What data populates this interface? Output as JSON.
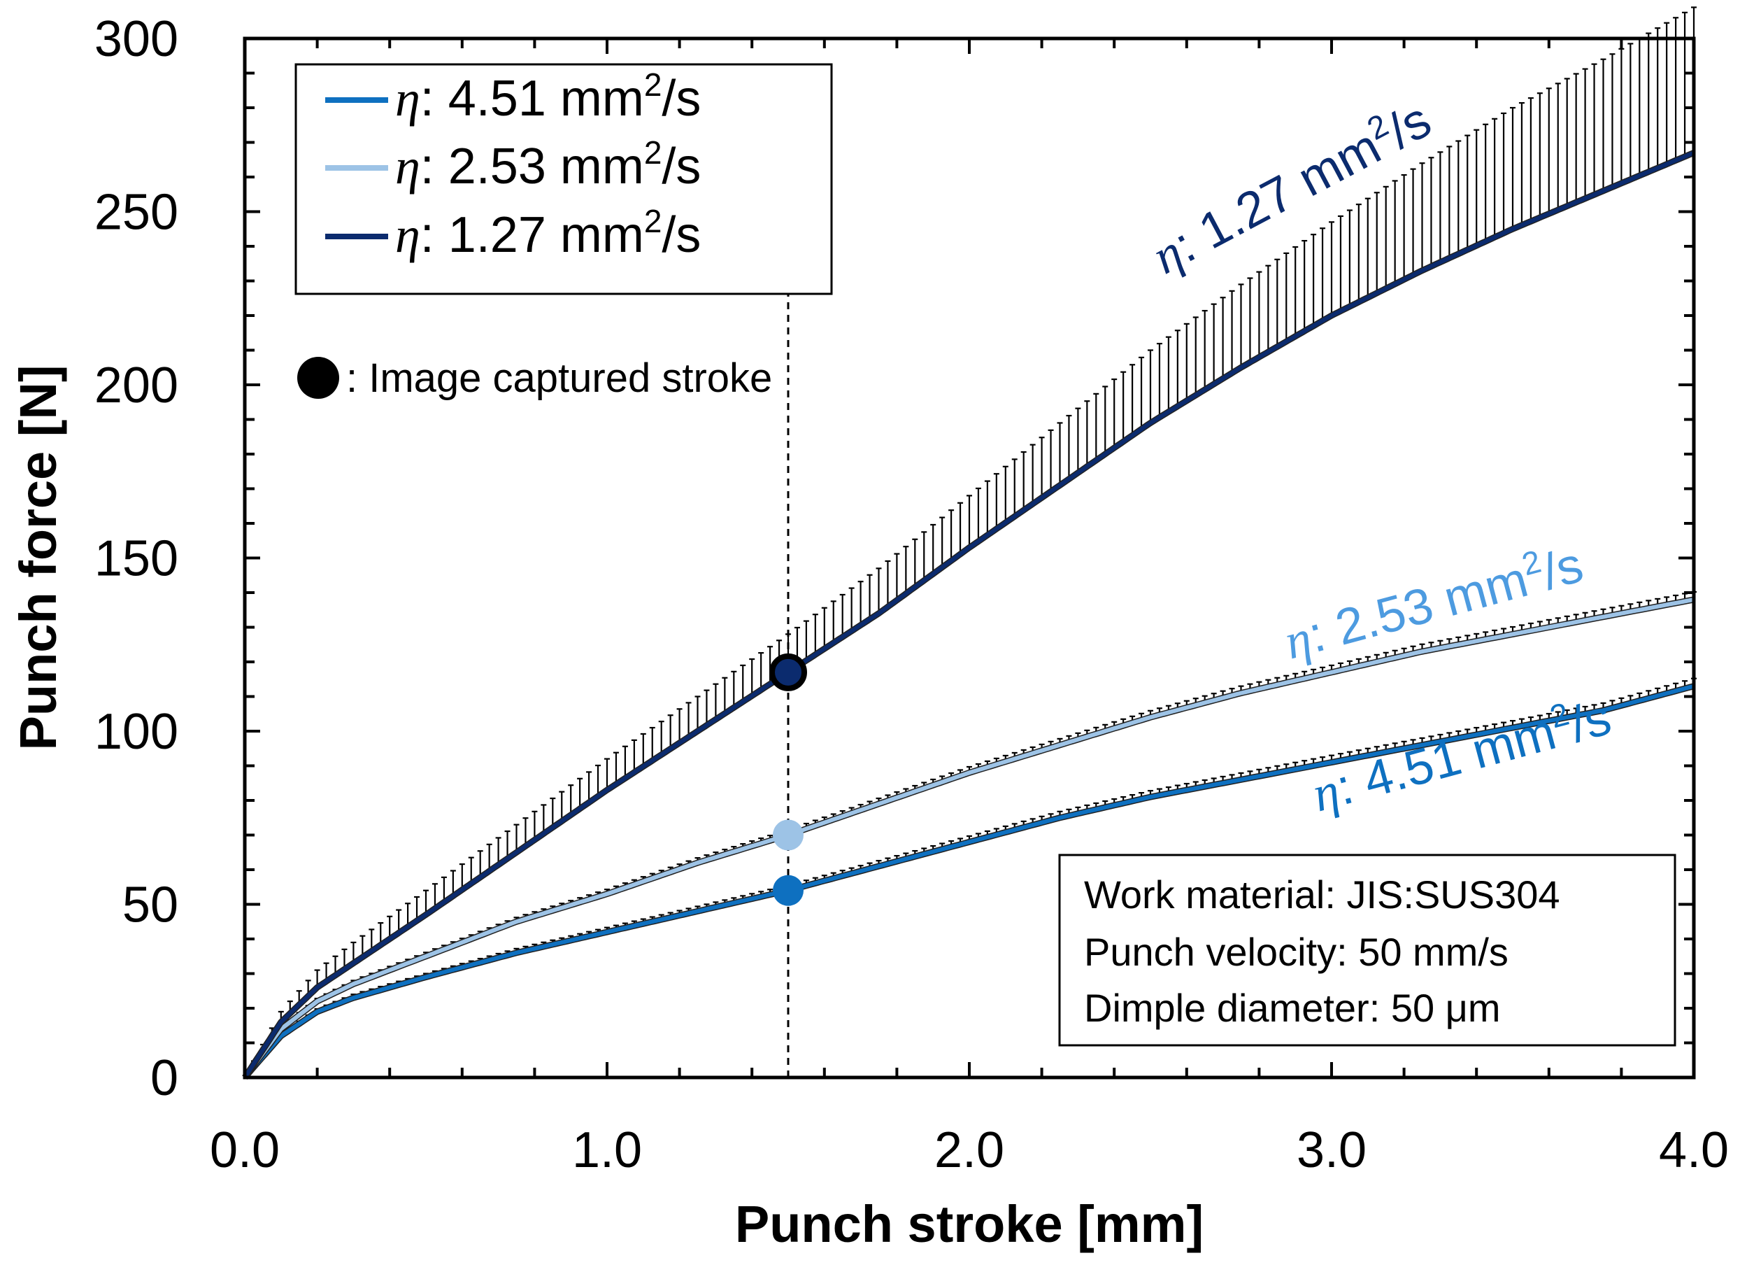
{
  "chart_data": {
    "type": "line",
    "xlabel": "Punch stroke [mm]",
    "ylabel": "Punch force [N]",
    "xlim": [
      0.0,
      4.0
    ],
    "ylim": [
      0,
      300
    ],
    "x_ticks": [
      "0.0",
      "1.0",
      "2.0",
      "3.0",
      "4.0"
    ],
    "y_ticks": [
      "0",
      "50",
      "100",
      "150",
      "200",
      "250",
      "300"
    ],
    "x_tick_values": [
      0,
      1,
      2,
      3,
      4
    ],
    "y_tick_values": [
      0,
      50,
      100,
      150,
      200,
      250,
      300
    ],
    "eta_symbol": "η",
    "series": [
      {
        "name": "η: 4.51 mm²/s",
        "value_label": ": 4.51 mm",
        "unit_sup": "2",
        "unit_tail": "/s",
        "color": "#0e70c0",
        "x": [
          0,
          0.05,
          0.1,
          0.2,
          0.3,
          0.5,
          0.75,
          1.0,
          1.25,
          1.5,
          1.75,
          2.0,
          2.25,
          2.5,
          2.75,
          3.0,
          3.25,
          3.5,
          3.75,
          4.0
        ],
        "y": [
          0,
          6,
          12,
          19,
          23,
          29,
          36,
          42,
          48,
          54,
          61,
          68,
          75,
          81,
          86,
          91,
          96,
          101,
          106,
          113
        ],
        "error": [
          0,
          0.4,
          0.6,
          0.8,
          1.0,
          1.0,
          1.2,
          1.3,
          1.4,
          1.5,
          1.6,
          1.7,
          1.8,
          1.8,
          1.9,
          2.0,
          2.0,
          2.0,
          2.1,
          2.2
        ]
      },
      {
        "name": "η: 2.53 mm²/s",
        "value_label": ": 2.53 mm",
        "unit_sup": "2",
        "unit_tail": "/s",
        "color": "#9dc3e6",
        "x": [
          0,
          0.05,
          0.1,
          0.2,
          0.3,
          0.5,
          0.75,
          1.0,
          1.25,
          1.5,
          1.75,
          2.0,
          2.25,
          2.5,
          2.75,
          3.0,
          3.25,
          3.5,
          3.75,
          4.0
        ],
        "y": [
          0,
          7,
          14,
          22,
          27,
          35,
          45,
          53,
          62,
          70,
          79,
          88,
          96,
          104,
          111,
          117,
          123,
          128,
          133,
          138
        ],
        "error": [
          0,
          0.4,
          0.6,
          0.8,
          1.0,
          1.1,
          1.2,
          1.3,
          1.4,
          1.5,
          1.6,
          1.7,
          1.8,
          1.9,
          2.0,
          2.0,
          2.1,
          2.1,
          2.2,
          2.2
        ]
      },
      {
        "name": "η: 1.27 mm²/s",
        "value_label": ": 1.27 mm",
        "unit_sup": "2",
        "unit_tail": "/s",
        "color": "#0b2b6e",
        "x": [
          0,
          0.05,
          0.1,
          0.2,
          0.3,
          0.5,
          0.75,
          1.0,
          1.25,
          1.5,
          1.75,
          2.0,
          2.25,
          2.5,
          2.75,
          3.0,
          3.25,
          3.5,
          3.75,
          4.0
        ],
        "y": [
          0,
          8,
          16,
          26,
          33,
          47,
          65,
          83,
          100,
          117,
          134,
          153,
          171,
          189,
          205,
          220,
          233,
          245,
          256,
          267
        ],
        "error": [
          0,
          1.5,
          3,
          5,
          6,
          7,
          8,
          9,
          10,
          11,
          13,
          15,
          18,
          21,
          24,
          27,
          31,
          35,
          38,
          42
        ]
      }
    ],
    "legend": {
      "position": "top-left",
      "entries": [
        "η: 4.51 mm²/s",
        "η: 2.53 mm²/s",
        "η: 1.27 mm²/s"
      ]
    },
    "captured_stroke": {
      "x": 1.5,
      "label": ": Image captured stroke",
      "points": [
        {
          "series": "η: 1.27 mm²/s",
          "y": 117
        },
        {
          "series": "η: 2.53 mm²/s",
          "y": 70
        },
        {
          "series": "η: 4.51 mm²/s",
          "y": 54
        }
      ]
    },
    "annotations": {
      "conditions": [
        "Work material: JIS:SUS304",
        "Punch velocity: 50 mm/s",
        "Dimple diameter: 50 μm"
      ]
    }
  }
}
